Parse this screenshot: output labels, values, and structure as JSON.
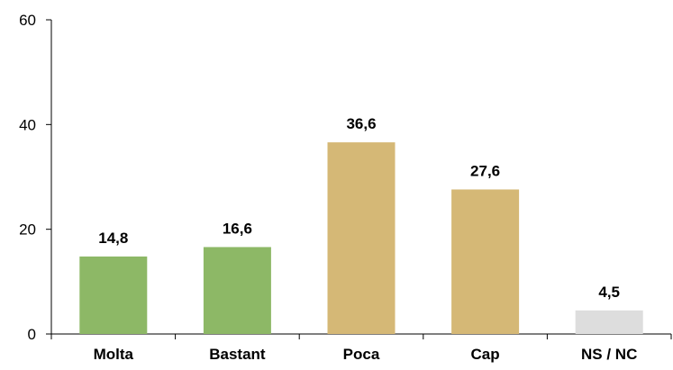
{
  "chart_data": {
    "type": "bar",
    "categories": [
      "Molta",
      "Bastant",
      "Poca",
      "Cap",
      "NS / NC"
    ],
    "values": [
      14.8,
      16.6,
      36.6,
      27.6,
      4.5
    ],
    "value_labels": [
      "14,8",
      "16,6",
      "36,6",
      "27,6",
      "4,5"
    ],
    "bar_colors": [
      "#8DB866",
      "#8DB866",
      "#D5B876",
      "#D5B876",
      "#DDDDDD"
    ],
    "title": "",
    "xlabel": "",
    "ylabel": "",
    "ylim": [
      0,
      60
    ],
    "yticks": [
      0,
      20,
      40,
      60
    ],
    "ytick_labels": [
      "0",
      "20",
      "40",
      "60"
    ],
    "grid": false,
    "legend": "none"
  }
}
